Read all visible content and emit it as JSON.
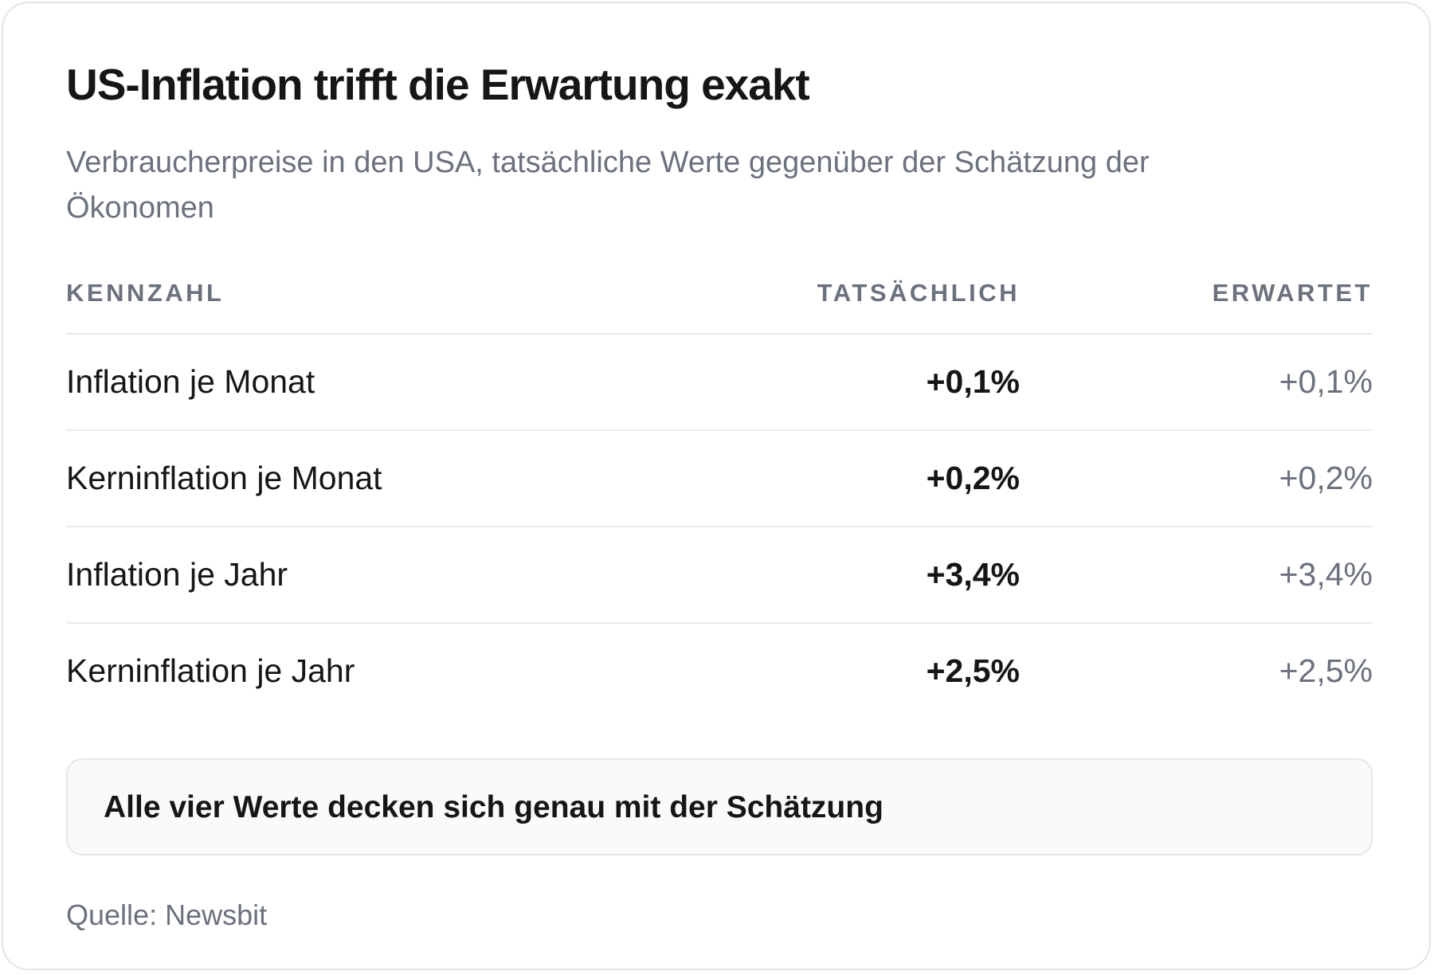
{
  "chart_data": {
    "type": "table",
    "title": "US-Inflation trifft die Erwartung exakt",
    "subtitle": "Verbraucherpreise in den USA, tatsächliche Werte gegenüber der Schätzung der Ökonomen",
    "columns": {
      "label": "KENNZAHL",
      "actual": "TATSÄCHLICH",
      "expected": "ERWARTET"
    },
    "rows": [
      {
        "label": "Inflation je Monat",
        "actual": "+0,1%",
        "expected": "+0,1%",
        "actual_value": 0.1,
        "expected_value": 0.1
      },
      {
        "label": "Kerninflation je Monat",
        "actual": "+0,2%",
        "expected": "+0,2%",
        "actual_value": 0.2,
        "expected_value": 0.2
      },
      {
        "label": "Inflation je Jahr",
        "actual": "+3,4%",
        "expected": "+3,4%",
        "actual_value": 3.4,
        "expected_value": 3.4
      },
      {
        "label": "Kerninflation je Jahr",
        "actual": "+2,5%",
        "expected": "+2,5%",
        "actual_value": 2.5,
        "expected_value": 2.5
      }
    ],
    "callout": "Alle vier Werte decken sich genau mit der Schätzung",
    "source": "Quelle: Newsbit"
  },
  "colors": {
    "text": "#161616",
    "muted": "#6b717d",
    "divider": "#e8e8e8",
    "callout_background": "#fafafa",
    "callout_border": "#e6e6e6"
  }
}
